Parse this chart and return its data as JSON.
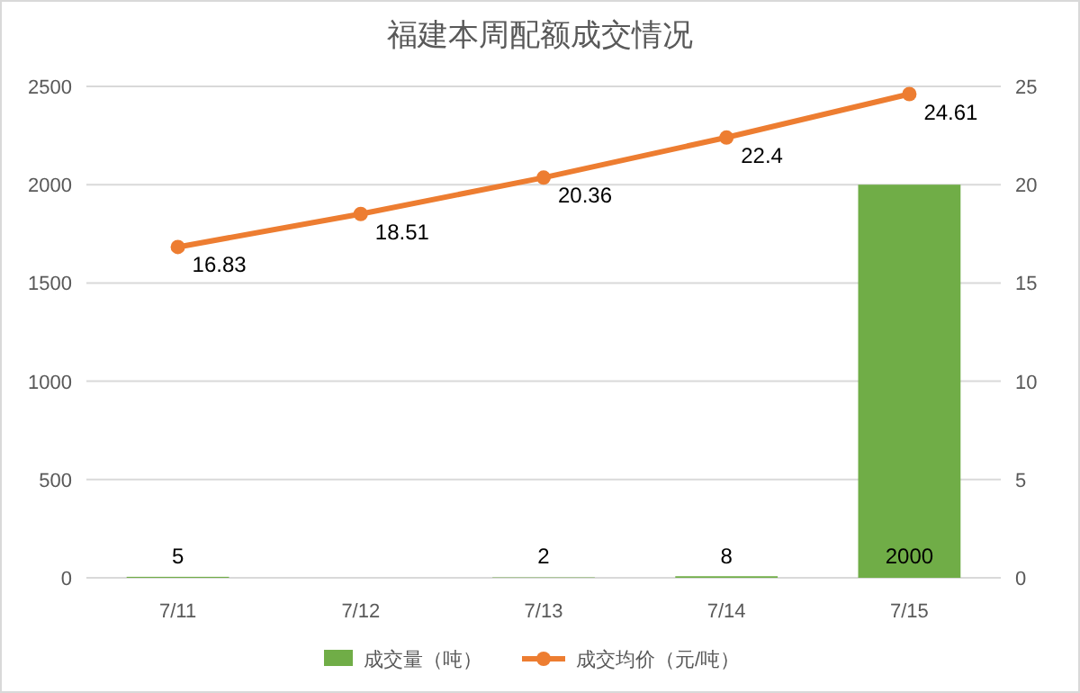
{
  "chart_data": {
    "type": "bar",
    "title": "福建本周配额成交情况",
    "categories": [
      "7/11",
      "7/12",
      "7/13",
      "7/14",
      "7/15"
    ],
    "series": [
      {
        "name": "成交量（吨）",
        "color": "#70ad47",
        "values": [
          5,
          null,
          2,
          8,
          2000
        ]
      },
      {
        "name": "成交均价（元/吨）",
        "type": "line",
        "axis": "y2",
        "color": "#ed7d31",
        "marker": "circle",
        "values": [
          16.83,
          18.51,
          20.36,
          22.4,
          24.61
        ]
      }
    ],
    "ylim": [
      0,
      2500
    ],
    "yticks": [
      0,
      500,
      1000,
      1500,
      2000,
      2500
    ],
    "y2lim": [
      0,
      25
    ],
    "y2ticks": [
      0,
      5,
      10,
      15,
      20,
      25
    ],
    "grid": "y",
    "legend": "bottom",
    "data_labels": true
  }
}
